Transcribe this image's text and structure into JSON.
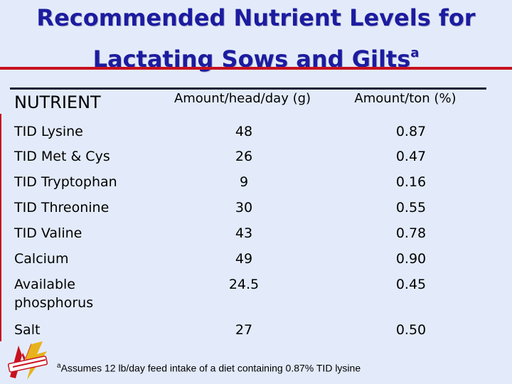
{
  "title": {
    "line1": "Recommended Nutrient Levels for",
    "line2": "Lactating Sows and Gilts",
    "superscript": "a"
  },
  "table": {
    "headers": {
      "nutrient": "NUTRIENT",
      "per_head": "Amount/head/day (g)",
      "per_ton": "Amount/ton (%)"
    },
    "rows": [
      {
        "nutrient": "TID Lysine",
        "per_head": "48",
        "per_ton": "0.87"
      },
      {
        "nutrient": "TID Met & Cys",
        "per_head": "26",
        "per_ton": "0.47"
      },
      {
        "nutrient": "TID Tryptophan",
        "per_head": "9",
        "per_ton": "0.16"
      },
      {
        "nutrient": "TID Threonine",
        "per_head": "30",
        "per_ton": "0.55"
      },
      {
        "nutrient": "TID Valine",
        "per_head": "43",
        "per_ton": "0.78"
      },
      {
        "nutrient": "Calcium",
        "per_head": "49",
        "per_ton": "0.90"
      },
      {
        "nutrient": "Available phosphorus",
        "per_head": "24.5",
        "per_ton": "0.45"
      },
      {
        "nutrient": "Salt",
        "per_head": "27",
        "per_ton": "0.50"
      }
    ]
  },
  "footnote": {
    "marker": "a",
    "text": "Assumes 12 lb/day feed intake of a diet containing 0.87% TID lysine"
  },
  "logo": {
    "icon": "iowa-state-logo-icon"
  },
  "colors": {
    "title": "#1c1ca0",
    "accent_red": "#c8111e",
    "background": "#e3ebfa"
  }
}
